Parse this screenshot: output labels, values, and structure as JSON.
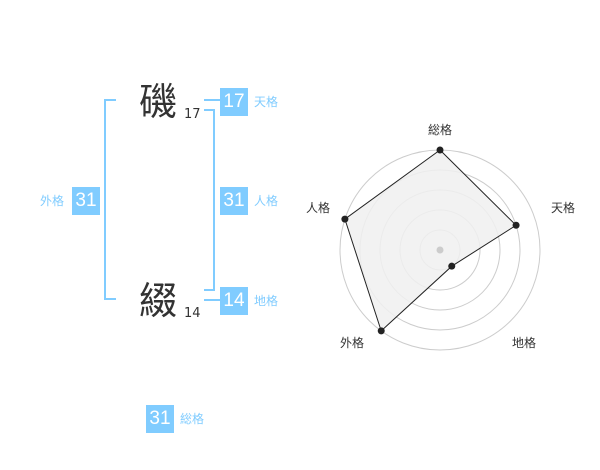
{
  "name": {
    "chars": [
      {
        "char": "磯",
        "strokes": "17"
      },
      {
        "char": "綴",
        "strokes": "14"
      }
    ]
  },
  "fortune": {
    "tenkaku": {
      "label": "天格",
      "value": "17"
    },
    "jinkaku": {
      "label": "人格",
      "value": "31"
    },
    "chikaku": {
      "label": "地格",
      "value": "14"
    },
    "gaikaku": {
      "label": "外格",
      "value": "31"
    },
    "soukaku": {
      "label": "総格",
      "value": "31"
    }
  },
  "colors": {
    "accent": "#80ccff",
    "text": "#333333",
    "radar_fill": "#f0f0f0",
    "grid": "#cccccc"
  },
  "chart_data": {
    "type": "radar",
    "axes": [
      "総格",
      "天格",
      "地格",
      "外格",
      "人格"
    ],
    "values": [
      5,
      4,
      1,
      5,
      5
    ],
    "range": [
      0,
      5
    ],
    "rings": 5
  }
}
